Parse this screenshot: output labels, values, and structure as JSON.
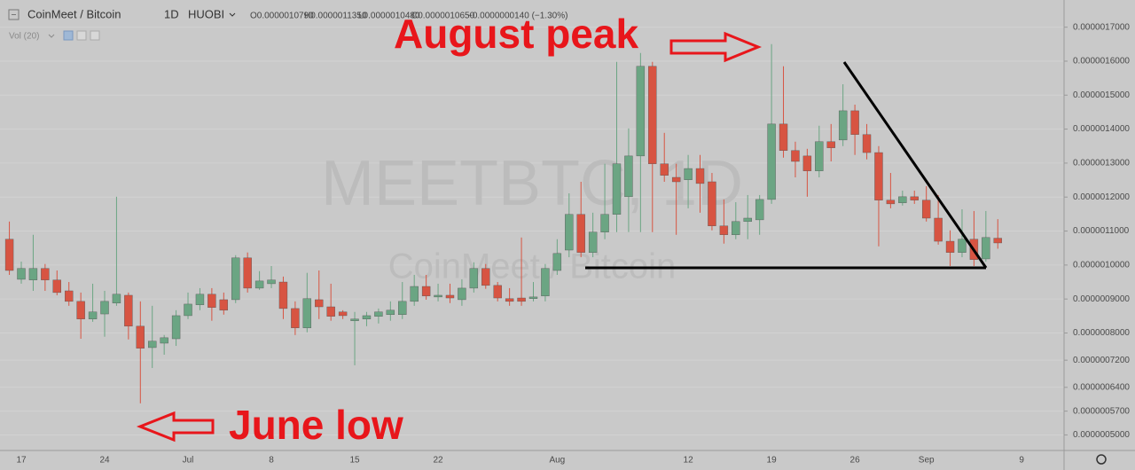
{
  "header": {
    "symbol": "CoinMeet / Bitcoin",
    "interval": "1D",
    "exchange": "HUOBI",
    "ohlc": [
      "O0.0000010790",
      "H0.0000011350",
      "L0.0000010480",
      "C0.0000010650",
      "−0.0000000140 (−1.30%)"
    ],
    "indicator": "Vol (20)"
  },
  "watermark": {
    "title": "MEETBTC, 1D",
    "subtitle": "CoinMeet / Bitcoin"
  },
  "annotations": [
    "August peak",
    "June low"
  ],
  "chart_data": {
    "type": "candlestick",
    "categories": [
      null,
      "17",
      null,
      null,
      null,
      null,
      null,
      null,
      "24",
      null,
      null,
      null,
      null,
      null,
      null,
      "Jul",
      null,
      null,
      null,
      null,
      null,
      null,
      "8",
      null,
      null,
      null,
      null,
      null,
      null,
      "15",
      null,
      null,
      null,
      null,
      null,
      null,
      "22",
      null,
      null,
      null,
      null,
      null,
      null,
      null,
      null,
      null,
      "Aug",
      null,
      null,
      null,
      null,
      null,
      null,
      null,
      null,
      null,
      null,
      "12",
      null,
      null,
      null,
      null,
      null,
      null,
      "19",
      null,
      null,
      null,
      null,
      null,
      null,
      "26",
      null,
      null,
      null,
      null,
      null,
      "Sep",
      null,
      null,
      null,
      null,
      null,
      null,
      null,
      "9"
    ],
    "open": [
      1.076e-06,
      9.58e-07,
      9.56e-07,
      9.9e-07,
      9.56e-07,
      9.24e-07,
      8.93e-07,
      8.41e-07,
      8.56e-07,
      8.88e-07,
      9.11e-07,
      8.2e-07,
      7.57e-07,
      7.7e-07,
      7.83e-07,
      8.51e-07,
      8.83e-07,
      9.14e-07,
      8.98e-07,
      8.98e-07,
      1.021e-06,
      9.32e-07,
      9.45e-07,
      9.5e-07,
      8.72e-07,
      8.15e-07,
      8.98e-07,
      8.77e-07,
      8.62e-07,
      8.36e-07,
      8.41e-07,
      8.49e-07,
      8.54e-07,
      8.54e-07,
      8.93e-07,
      9.37e-07,
      9.06e-07,
      9.11e-07,
      8.98e-07,
      9.32e-07,
      9.9e-07,
      9.4e-07,
      9.01e-07,
      9.03e-07,
      9.01e-07,
      9.09e-07,
      9.84e-07,
      1.044e-06,
      1.149e-06,
      1.037e-06,
      1.097e-06,
      1.149e-06,
      1.201e-06,
      1.321e-06,
      1.585e-06,
      1.298e-06,
      1.258e-06,
      1.251e-06,
      1.284e-06,
      1.245e-06,
      1.115e-06,
      1.089e-06,
      1.128e-06,
      1.133e-06,
      1.193e-06,
      1.415e-06,
      1.337e-06,
      1.321e-06,
      1.277e-06,
      1.363e-06,
      1.368e-06,
      1.454e-06,
      1.384e-06,
      1.331e-06,
      1.191e-06,
      1.183e-06,
      1.201e-06,
      1.191e-06,
      1.138e-06,
      1.07e-06,
      1.037e-06,
      1.076e-06,
      1.018e-06,
      1.079e-06,
      null,
      null
    ],
    "high": [
      1.128e-06,
      1.01e-06,
      1.089e-06,
      1.003e-06,
      9.84e-07,
      9.5e-07,
      9.19e-07,
      9.45e-07,
      9.24e-07,
      1.201e-06,
      9.19e-07,
      8.93e-07,
      8.8e-07,
      7.94e-07,
      8.67e-07,
      9.19e-07,
      9.32e-07,
      9.32e-07,
      9.19e-07,
      1.029e-06,
      1.037e-06,
      9.82e-07,
      9.97e-07,
      9.66e-07,
      8.93e-07,
      9.77e-07,
      9.84e-07,
      9.45e-07,
      8.67e-07,
      8.62e-07,
      8.62e-07,
      8.72e-07,
      8.93e-07,
      9.5e-07,
      9.71e-07,
      9.71e-07,
      9.45e-07,
      9.45e-07,
      9.58e-07,
      1.008e-06,
      1.003e-06,
      9.5e-07,
      9.32e-07,
      1.081e-06,
      9.5e-07,
      1.003e-06,
      1.076e-06,
      1.211e-06,
      1.245e-06,
      1.154e-06,
      1.298e-06,
      1.598e-06,
      1.402e-06,
      1.624e-06,
      1.598e-06,
      1.389e-06,
      1.298e-06,
      1.324e-06,
      1.324e-06,
      1.271e-06,
      1.193e-06,
      1.185e-06,
      1.206e-06,
      1.206e-06,
      1.65e-06,
      1.585e-06,
      1.363e-06,
      1.342e-06,
      1.41e-06,
      1.415e-06,
      1.532e-06,
      1.472e-06,
      1.415e-06,
      1.35e-06,
      1.271e-06,
      1.219e-06,
      1.219e-06,
      1.232e-06,
      1.206e-06,
      1.102e-06,
      1.164e-06,
      1.159e-06,
      1.159e-06,
      1.135e-06,
      null,
      null
    ],
    "low": [
      9.71e-07,
      9.45e-07,
      9.24e-07,
      9.24e-07,
      9.11e-07,
      8.8e-07,
      7.83e-07,
      8.33e-07,
      7.89e-07,
      8.8e-07,
      7.81e-07,
      5.93e-07,
      6.97e-07,
      7.36e-07,
      7.62e-07,
      8.41e-07,
      8.67e-07,
      8.36e-07,
      8.54e-07,
      8.88e-07,
      9.19e-07,
      9.27e-07,
      9.32e-07,
      8.41e-07,
      7.94e-07,
      8.02e-07,
      8.41e-07,
      8.36e-07,
      8.41e-07,
      7.05e-07,
      8.2e-07,
      8.28e-07,
      8.36e-07,
      8.41e-07,
      8.8e-07,
      8.98e-07,
      8.93e-07,
      8.88e-07,
      8.8e-07,
      9.19e-07,
      9.3e-07,
      8.93e-07,
      8.8e-07,
      8.8e-07,
      8.93e-07,
      8.93e-07,
      9.71e-07,
      1.023e-06,
      1.023e-06,
      1.023e-06,
      1.076e-06,
      1.097e-06,
      1.097e-06,
      1.097e-06,
      1.097e-06,
      1.245e-06,
      1.089e-06,
      1.167e-06,
      1.154e-06,
      1.102e-06,
      1.063e-06,
      1.076e-06,
      1.076e-06,
      1.089e-06,
      1.18e-06,
      1.316e-06,
      1.258e-06,
      1.201e-06,
      1.258e-06,
      1.305e-06,
      1.35e-06,
      1.324e-06,
      1.311e-06,
      1.055e-06,
      1.167e-06,
      1.175e-06,
      1.18e-06,
      1.128e-06,
      1.06e-06,
      9.97e-07,
      1.023e-06,
      9.97e-07,
      1.01e-06,
      1.048e-06,
      null,
      null
    ],
    "close": [
      9.84e-07,
      9.9e-07,
      9.9e-07,
      9.56e-07,
      9.19e-07,
      8.93e-07,
      8.41e-07,
      8.62e-07,
      8.93e-07,
      9.14e-07,
      8.2e-07,
      7.55e-07,
      7.76e-07,
      7.86e-07,
      8.51e-07,
      8.85e-07,
      9.14e-07,
      8.75e-07,
      8.67e-07,
      1.021e-06,
      9.32e-07,
      9.53e-07,
      9.56e-07,
      8.72e-07,
      8.15e-07,
      9.01e-07,
      8.77e-07,
      8.49e-07,
      8.51e-07,
      8.41e-07,
      8.51e-07,
      8.62e-07,
      8.67e-07,
      8.93e-07,
      9.37e-07,
      9.09e-07,
      9.11e-07,
      9.03e-07,
      9.32e-07,
      9.9e-07,
      9.4e-07,
      9.03e-07,
      8.93e-07,
      8.93e-07,
      9.06e-07,
      9.9e-07,
      1.034e-06,
      1.149e-06,
      1.037e-06,
      1.097e-06,
      1.149e-06,
      1.298e-06,
      1.321e-06,
      1.585e-06,
      1.298e-06,
      1.264e-06,
      1.245e-06,
      1.284e-06,
      1.24e-06,
      1.115e-06,
      1.089e-06,
      1.128e-06,
      1.138e-06,
      1.193e-06,
      1.415e-06,
      1.337e-06,
      1.305e-06,
      1.277e-06,
      1.363e-06,
      1.345e-06,
      1.454e-06,
      1.384e-06,
      1.331e-06,
      1.191e-06,
      1.18e-06,
      1.201e-06,
      1.191e-06,
      1.138e-06,
      1.07e-06,
      1.037e-06,
      1.076e-06,
      1.016e-06,
      1.081e-06,
      1.065e-06,
      null,
      null
    ],
    "up_color": "#6ba583",
    "down_color": "#d75442",
    "ylim": [
      4.62e-07,
      1.78e-06
    ],
    "yticks": [
      {
        "value": 1.7e-06,
        "label": "0.0000017000"
      },
      {
        "value": 1.6e-06,
        "label": "0.0000016000"
      },
      {
        "value": 1.5e-06,
        "label": "0.0000015000"
      },
      {
        "value": 1.4e-06,
        "label": "0.0000014000"
      },
      {
        "value": 1.3e-06,
        "label": "0.0000013000"
      },
      {
        "value": 1.2e-06,
        "label": "0.0000012000"
      },
      {
        "value": 1.1e-06,
        "label": "0.0000011000"
      },
      {
        "value": 1e-06,
        "label": "0.0000010000"
      },
      {
        "value": 9e-07,
        "label": "0.0000009000"
      },
      {
        "value": 8e-07,
        "label": "0.0000008000"
      },
      {
        "value": 7.2e-07,
        "label": "0.0000007200"
      },
      {
        "value": 6.4e-07,
        "label": "0.0000006400"
      },
      {
        "value": 5.7e-07,
        "label": "0.0000005700"
      },
      {
        "value": 5e-07,
        "label": "0.0000005000"
      }
    ],
    "grid": true
  }
}
